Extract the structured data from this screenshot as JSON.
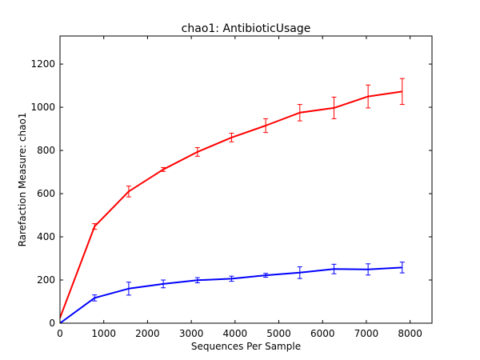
{
  "chart_data": {
    "type": "line",
    "title": "chao1: AntibioticUsage",
    "xlabel": "Sequences Per Sample",
    "ylabel": "Rarefaction Measure: chao1",
    "xlim": [
      0,
      8500
    ],
    "ylim": [
      0,
      1330
    ],
    "xticks": [
      0,
      1000,
      2000,
      3000,
      4000,
      5000,
      6000,
      7000,
      8000
    ],
    "yticks": [
      0,
      200,
      400,
      600,
      800,
      1000,
      1200
    ],
    "grid": false,
    "legend": "none",
    "series": [
      {
        "name": "red",
        "color": "#ff0000",
        "x": [
          0,
          790,
          1570,
          2360,
          3140,
          3920,
          4700,
          5480,
          6260,
          7040,
          7820
        ],
        "y": [
          25,
          448,
          610,
          712,
          793,
          860,
          915,
          975,
          997,
          1050,
          1073
        ],
        "err": [
          0,
          13,
          25,
          9,
          20,
          20,
          32,
          38,
          50,
          53,
          60
        ]
      },
      {
        "name": "blue",
        "color": "#0000ff",
        "x": [
          0,
          790,
          1570,
          2360,
          3140,
          3920,
          4700,
          5480,
          6260,
          7040,
          7820
        ],
        "y": [
          0,
          117,
          160,
          182,
          199,
          206,
          222,
          234,
          251,
          249,
          258
        ],
        "err": [
          0,
          14,
          30,
          18,
          12,
          12,
          9,
          27,
          22,
          26,
          25
        ]
      }
    ]
  }
}
